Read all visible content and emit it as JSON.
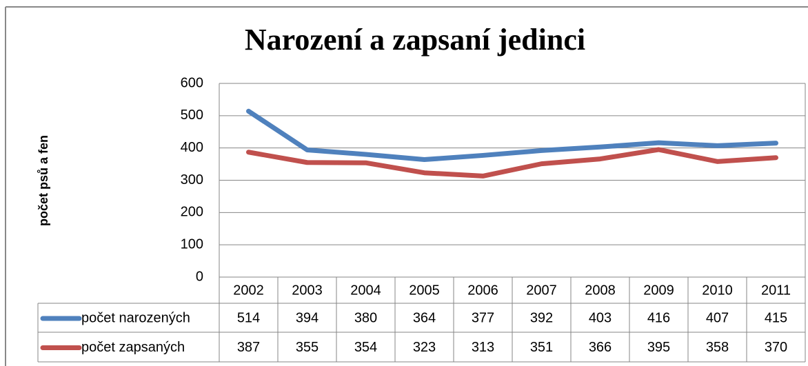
{
  "chart_data": {
    "type": "line",
    "title": "Narození a zapsaní jedinci",
    "y_label": "počet psů a fen",
    "categories": [
      "2002",
      "2003",
      "2004",
      "2005",
      "2006",
      "2007",
      "2008",
      "2009",
      "2010",
      "2011"
    ],
    "series": [
      {
        "name": "počet narozených",
        "color": "#4f81bd",
        "values": [
          514,
          394,
          380,
          364,
          377,
          392,
          403,
          416,
          407,
          415
        ]
      },
      {
        "name": "počet zapsaných",
        "color": "#c0504d",
        "values": [
          387,
          355,
          354,
          323,
          313,
          351,
          366,
          395,
          358,
          370
        ]
      }
    ],
    "ylim": [
      0,
      600
    ],
    "yticks": [
      0,
      100,
      200,
      300,
      400,
      500,
      600
    ],
    "grid": true
  }
}
